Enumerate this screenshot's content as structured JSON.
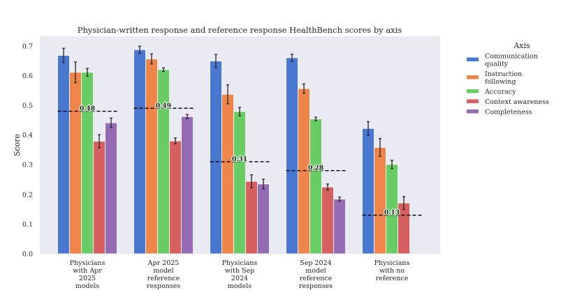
{
  "chart_data": {
    "type": "bar",
    "title": "Physician-written response and reference response HealthBench scores by axis",
    "xlabel": "",
    "ylabel": "Score",
    "ylim": [
      0,
      0.74
    ],
    "yticks": [
      "0.0",
      "0.1",
      "0.2",
      "0.3",
      "0.4",
      "0.5",
      "0.6",
      "0.7"
    ],
    "grid": false,
    "legend_title": "Axis",
    "legend_position": "outside-right",
    "categories": [
      [
        "Physicians",
        "with Apr",
        "2025",
        "models"
      ],
      [
        "Apr 2025",
        "model",
        "reference",
        "responses"
      ],
      [
        "Physicians",
        "with Sep",
        "2024",
        "models"
      ],
      [
        "Sep 2024",
        "model",
        "reference",
        "responses"
      ],
      [
        "Physicians",
        "with no",
        "reference"
      ]
    ],
    "series": [
      {
        "name": [
          "Communication",
          "quality"
        ],
        "color": "#4878d0",
        "values": [
          0.668,
          0.687,
          0.649,
          0.66,
          0.422
        ],
        "errors": [
          0.024,
          0.012,
          0.022,
          0.012,
          0.023
        ]
      },
      {
        "name": [
          "Instruction",
          "following"
        ],
        "color": "#ee854a",
        "values": [
          0.611,
          0.656,
          0.537,
          0.556,
          0.358
        ],
        "errors": [
          0.035,
          0.017,
          0.032,
          0.016,
          0.03
        ]
      },
      {
        "name": [
          "Accuracy"
        ],
        "color": "#6acc64",
        "values": [
          0.611,
          0.62,
          0.479,
          0.454,
          0.301
        ],
        "errors": [
          0.013,
          0.006,
          0.014,
          0.006,
          0.014
        ]
      },
      {
        "name": [
          "Context awareness"
        ],
        "color": "#d65f5f",
        "values": [
          0.379,
          0.38,
          0.244,
          0.225,
          0.171
        ],
        "errors": [
          0.022,
          0.01,
          0.022,
          0.01,
          0.022
        ]
      },
      {
        "name": [
          "Completeness"
        ],
        "color": "#956cb4",
        "values": [
          0.441,
          0.462,
          0.235,
          0.184,
          null
        ],
        "errors": [
          0.016,
          0.007,
          0.016,
          0.007,
          null
        ]
      }
    ],
    "overall_means": [
      0.48,
      0.49,
      0.31,
      0.28,
      0.13
    ],
    "overall_mean_labels": [
      "0.48",
      "0.49",
      "0.31",
      "0.28",
      "0.13"
    ]
  }
}
